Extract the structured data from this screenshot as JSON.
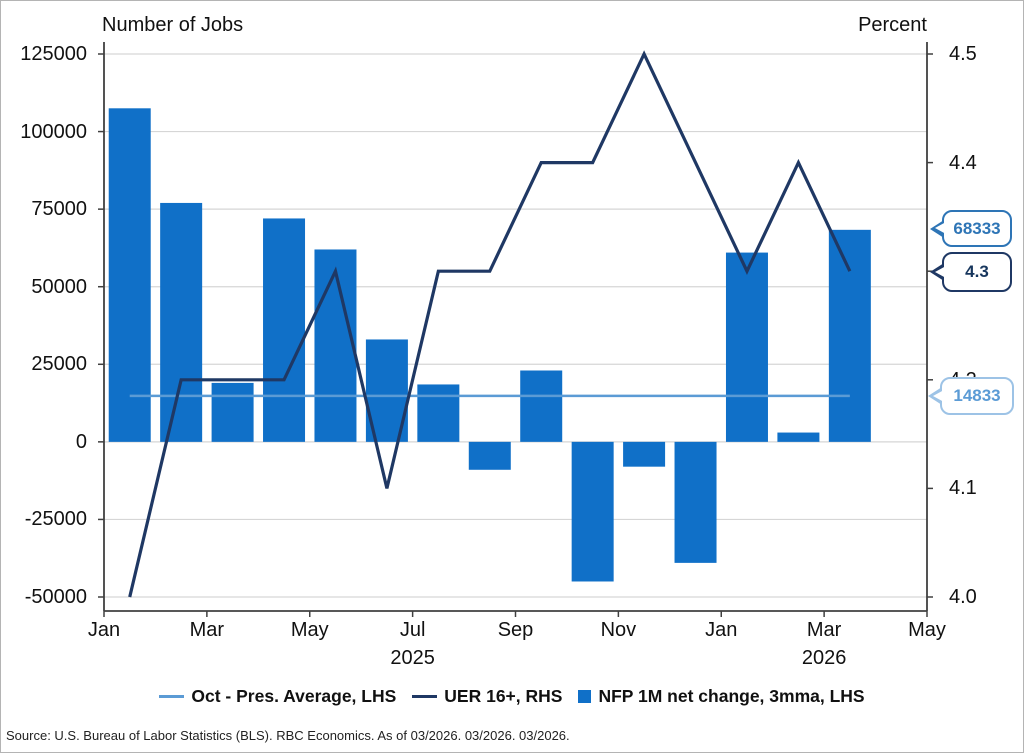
{
  "chart_data": {
    "type": "combo-bar-line",
    "left_axis": {
      "title": "Number of Jobs",
      "min": -50000,
      "max": 125000,
      "tick_values": [
        125000,
        100000,
        75000,
        50000,
        25000,
        0,
        -25000,
        -50000
      ],
      "tick_labels": [
        "125000",
        "100000",
        "75000",
        "50000",
        "25000",
        "0",
        "-25000",
        "-50000"
      ]
    },
    "right_axis": {
      "title": "Percent",
      "min": 4.0,
      "max": 4.5,
      "tick_values": [
        4.5,
        4.4,
        4.3,
        4.2,
        4.1,
        4.0
      ],
      "tick_labels": [
        "4.5",
        "4.4",
        "4.3",
        "4.2",
        "4.1",
        "4.0"
      ]
    },
    "x_axis": {
      "tick_labels": [
        "Jan",
        "Mar",
        "May",
        "Jul",
        "Sep",
        "Nov",
        "Jan",
        "Mar",
        "May"
      ],
      "year_labels": [
        {
          "label": "2025",
          "tick_index": 6
        },
        {
          "label": "2026",
          "tick_index": 14
        }
      ]
    },
    "categories": [
      "Jan 2025",
      "Feb 2025",
      "Mar 2025",
      "Apr 2025",
      "May 2025",
      "Jun 2025",
      "Jul 2025",
      "Aug 2025",
      "Sep 2025",
      "Oct 2025",
      "Nov 2025",
      "Dec 2025",
      "Jan 2026",
      "Feb 2026",
      "Mar 2026"
    ],
    "series": [
      {
        "name": "Oct - Pres. Average, LHS",
        "type": "hline",
        "axis": "left",
        "color": "#5B9BD5",
        "value": 14833
      },
      {
        "name": "UER 16+, RHS",
        "type": "line",
        "axis": "right",
        "color": "#1F3864",
        "values": [
          4.0,
          4.2,
          4.2,
          4.2,
          4.3,
          4.1,
          4.3,
          4.3,
          4.4,
          4.4,
          4.5,
          4.4,
          4.3,
          4.4,
          4.3
        ]
      },
      {
        "name": "NFP 1M net change, 3mma, LHS",
        "type": "bar",
        "axis": "left",
        "color": "#1070C8",
        "values": [
          107500,
          77000,
          19000,
          72000,
          62000,
          33000,
          18500,
          -9000,
          23000,
          -45000,
          -8000,
          -39000,
          61000,
          3000,
          68333
        ]
      }
    ],
    "callouts": [
      {
        "label": "68333",
        "color": "#2E75B6",
        "text_color": "#2E75B6"
      },
      {
        "label": "4.3",
        "color": "#1F3864",
        "text_color": "#17365D"
      },
      {
        "label": "14833",
        "color": "#9DC3E6",
        "text_color": "#5B9BD5"
      }
    ],
    "gridline_color": "#D6D6D6",
    "axis_color": "#404040",
    "grid": true,
    "legend_position": "bottom"
  },
  "source": "Source: U.S. Bureau of Labor Statistics (BLS). RBC Economics. As of 03/2026. 03/2026. 03/2026."
}
